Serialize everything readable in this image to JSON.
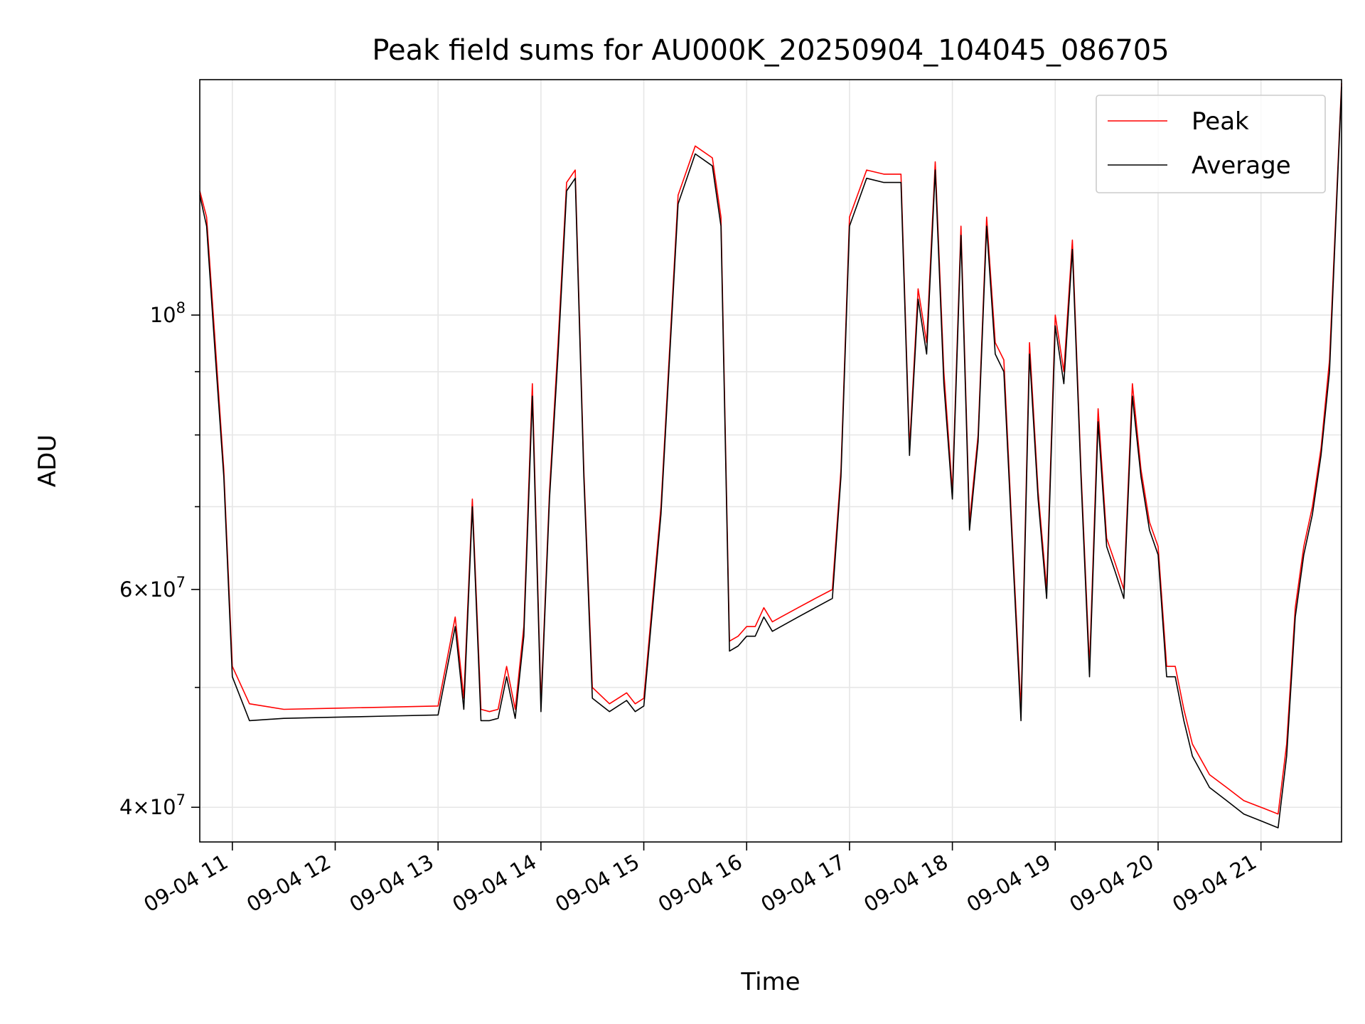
{
  "chart_data": {
    "type": "line",
    "title": "Peak field sums for AU000K_20250904_104045_086705",
    "xlabel": "Time",
    "ylabel": "ADU",
    "yscale": "log",
    "grid": true,
    "legend_position": "top-right",
    "x_range": [
      "2025-09-04 10:41",
      "2025-09-04 21:47"
    ],
    "y_range": [
      37500000,
      155000000
    ],
    "x_ticks": [
      {
        "value": "2025-09-04 11:00",
        "label": "09-04 11"
      },
      {
        "value": "2025-09-04 12:00",
        "label": "09-04 12"
      },
      {
        "value": "2025-09-04 13:00",
        "label": "09-04 13"
      },
      {
        "value": "2025-09-04 14:00",
        "label": "09-04 14"
      },
      {
        "value": "2025-09-04 15:00",
        "label": "09-04 15"
      },
      {
        "value": "2025-09-04 16:00",
        "label": "09-04 16"
      },
      {
        "value": "2025-09-04 17:00",
        "label": "09-04 17"
      },
      {
        "value": "2025-09-04 18:00",
        "label": "09-04 18"
      },
      {
        "value": "2025-09-04 19:00",
        "label": "09-04 19"
      },
      {
        "value": "2025-09-04 20:00",
        "label": "09-04 20"
      },
      {
        "value": "2025-09-04 21:00",
        "label": "09-04 21"
      }
    ],
    "y_ticks_major": [
      {
        "value": 40000000,
        "mantissa": "4",
        "base": "10",
        "exp": "7"
      },
      {
        "value": 60000000,
        "mantissa": "6",
        "base": "10",
        "exp": "7"
      },
      {
        "value": 100000000,
        "mantissa": "",
        "base": "10",
        "exp": "8"
      }
    ],
    "y_ticks_minor": [
      50000000,
      70000000,
      80000000,
      90000000
    ],
    "series": [
      {
        "name": "Peak",
        "color": "#ff0000",
        "x": [
          "2025-09-04 10:41",
          "2025-09-04 10:45",
          "2025-09-04 10:50",
          "2025-09-04 10:55",
          "2025-09-04 11:00",
          "2025-09-04 11:10",
          "2025-09-04 11:30",
          "2025-09-04 12:00",
          "2025-09-04 12:30",
          "2025-09-04 13:00",
          "2025-09-04 13:10",
          "2025-09-04 13:15",
          "2025-09-04 13:20",
          "2025-09-04 13:25",
          "2025-09-04 13:30",
          "2025-09-04 13:35",
          "2025-09-04 13:40",
          "2025-09-04 13:45",
          "2025-09-04 13:50",
          "2025-09-04 13:55",
          "2025-09-04 14:00",
          "2025-09-04 14:05",
          "2025-09-04 14:10",
          "2025-09-04 14:15",
          "2025-09-04 14:20",
          "2025-09-04 14:25",
          "2025-09-04 14:30",
          "2025-09-04 14:40",
          "2025-09-04 14:50",
          "2025-09-04 14:55",
          "2025-09-04 15:00",
          "2025-09-04 15:10",
          "2025-09-04 15:20",
          "2025-09-04 15:30",
          "2025-09-04 15:40",
          "2025-09-04 15:45",
          "2025-09-04 15:50",
          "2025-09-04 15:55",
          "2025-09-04 16:00",
          "2025-09-04 16:05",
          "2025-09-04 16:10",
          "2025-09-04 16:15",
          "2025-09-04 16:20",
          "2025-09-04 16:30",
          "2025-09-04 16:40",
          "2025-09-04 16:50",
          "2025-09-04 16:55",
          "2025-09-04 17:00",
          "2025-09-04 17:10",
          "2025-09-04 17:20",
          "2025-09-04 17:30",
          "2025-09-04 17:35",
          "2025-09-04 17:40",
          "2025-09-04 17:45",
          "2025-09-04 17:50",
          "2025-09-04 17:55",
          "2025-09-04 18:00",
          "2025-09-04 18:05",
          "2025-09-04 18:10",
          "2025-09-04 18:15",
          "2025-09-04 18:20",
          "2025-09-04 18:25",
          "2025-09-04 18:30",
          "2025-09-04 18:35",
          "2025-09-04 18:40",
          "2025-09-04 18:45",
          "2025-09-04 18:50",
          "2025-09-04 18:55",
          "2025-09-04 19:00",
          "2025-09-04 19:05",
          "2025-09-04 19:10",
          "2025-09-04 19:15",
          "2025-09-04 19:20",
          "2025-09-04 19:25",
          "2025-09-04 19:30",
          "2025-09-04 19:35",
          "2025-09-04 19:40",
          "2025-09-04 19:45",
          "2025-09-04 19:50",
          "2025-09-04 19:55",
          "2025-09-04 20:00",
          "2025-09-04 20:05",
          "2025-09-04 20:10",
          "2025-09-04 20:15",
          "2025-09-04 20:20",
          "2025-09-04 20:30",
          "2025-09-04 20:40",
          "2025-09-04 20:50",
          "2025-09-04 21:00",
          "2025-09-04 21:10",
          "2025-09-04 21:15",
          "2025-09-04 21:20",
          "2025-09-04 21:25",
          "2025-09-04 21:30",
          "2025-09-04 21:35",
          "2025-09-04 21:40",
          "2025-09-04 21:47"
        ],
        "values": [
          126000000,
          120000000,
          95000000,
          75000000,
          52000000,
          48500000,
          48000000,
          48100000,
          48200000,
          48300000,
          57000000,
          49000000,
          71000000,
          48000000,
          47800000,
          48000000,
          52000000,
          48000000,
          56000000,
          88000000,
          48500000,
          72000000,
          95000000,
          128000000,
          131000000,
          75000000,
          50000000,
          48500000,
          49500000,
          48500000,
          49000000,
          70000000,
          125000000,
          137000000,
          134000000,
          120000000,
          54500000,
          55000000,
          56000000,
          56000000,
          58000000,
          56500000,
          57000000,
          58000000,
          59000000,
          60000000,
          75000000,
          120000000,
          131000000,
          130000000,
          130000000,
          78000000,
          105000000,
          95000000,
          133000000,
          90000000,
          72000000,
          118000000,
          68000000,
          80000000,
          120000000,
          95000000,
          92000000,
          66000000,
          48000000,
          95000000,
          72000000,
          60000000,
          100000000,
          90000000,
          115000000,
          75000000,
          52000000,
          84000000,
          66000000,
          63000000,
          60000000,
          88000000,
          75000000,
          68000000,
          65000000,
          52000000,
          52000000,
          48000000,
          45000000,
          42500000,
          41500000,
          40500000,
          40000000,
          39500000,
          45000000,
          58000000,
          65000000,
          70000000,
          78000000,
          92000000,
          154000000
        ]
      },
      {
        "name": "Average",
        "color": "#000000",
        "x": [
          "2025-09-04 10:41",
          "2025-09-04 10:45",
          "2025-09-04 10:50",
          "2025-09-04 10:55",
          "2025-09-04 11:00",
          "2025-09-04 11:10",
          "2025-09-04 11:30",
          "2025-09-04 12:00",
          "2025-09-04 12:30",
          "2025-09-04 13:00",
          "2025-09-04 13:10",
          "2025-09-04 13:15",
          "2025-09-04 13:20",
          "2025-09-04 13:25",
          "2025-09-04 13:30",
          "2025-09-04 13:35",
          "2025-09-04 13:40",
          "2025-09-04 13:45",
          "2025-09-04 13:50",
          "2025-09-04 13:55",
          "2025-09-04 14:00",
          "2025-09-04 14:05",
          "2025-09-04 14:10",
          "2025-09-04 14:15",
          "2025-09-04 14:20",
          "2025-09-04 14:25",
          "2025-09-04 14:30",
          "2025-09-04 14:40",
          "2025-09-04 14:50",
          "2025-09-04 14:55",
          "2025-09-04 15:00",
          "2025-09-04 15:10",
          "2025-09-04 15:20",
          "2025-09-04 15:30",
          "2025-09-04 15:40",
          "2025-09-04 15:45",
          "2025-09-04 15:50",
          "2025-09-04 15:55",
          "2025-09-04 16:00",
          "2025-09-04 16:05",
          "2025-09-04 16:10",
          "2025-09-04 16:15",
          "2025-09-04 16:20",
          "2025-09-04 16:30",
          "2025-09-04 16:40",
          "2025-09-04 16:50",
          "2025-09-04 16:55",
          "2025-09-04 17:00",
          "2025-09-04 17:10",
          "2025-09-04 17:20",
          "2025-09-04 17:30",
          "2025-09-04 17:35",
          "2025-09-04 17:40",
          "2025-09-04 17:45",
          "2025-09-04 17:50",
          "2025-09-04 17:55",
          "2025-09-04 18:00",
          "2025-09-04 18:05",
          "2025-09-04 18:10",
          "2025-09-04 18:15",
          "2025-09-04 18:20",
          "2025-09-04 18:25",
          "2025-09-04 18:30",
          "2025-09-04 18:35",
          "2025-09-04 18:40",
          "2025-09-04 18:45",
          "2025-09-04 18:50",
          "2025-09-04 18:55",
          "2025-09-04 19:00",
          "2025-09-04 19:05",
          "2025-09-04 19:10",
          "2025-09-04 19:15",
          "2025-09-04 19:20",
          "2025-09-04 19:25",
          "2025-09-04 19:30",
          "2025-09-04 19:35",
          "2025-09-04 19:40",
          "2025-09-04 19:45",
          "2025-09-04 19:50",
          "2025-09-04 19:55",
          "2025-09-04 20:00",
          "2025-09-04 20:05",
          "2025-09-04 20:10",
          "2025-09-04 20:15",
          "2025-09-04 20:20",
          "2025-09-04 20:30",
          "2025-09-04 20:40",
          "2025-09-04 20:50",
          "2025-09-04 21:00",
          "2025-09-04 21:10",
          "2025-09-04 21:15",
          "2025-09-04 21:20",
          "2025-09-04 21:25",
          "2025-09-04 21:30",
          "2025-09-04 21:35",
          "2025-09-04 21:40",
          "2025-09-04 21:47"
        ],
        "values": [
          125000000,
          118000000,
          93000000,
          74000000,
          51000000,
          47000000,
          47200000,
          47300000,
          47400000,
          47500000,
          56000000,
          48000000,
          70000000,
          47000000,
          47000000,
          47200000,
          51000000,
          47200000,
          55000000,
          86000000,
          47800000,
          71000000,
          93000000,
          126000000,
          129000000,
          74000000,
          49000000,
          47800000,
          48800000,
          47800000,
          48300000,
          69000000,
          123000000,
          135000000,
          132000000,
          118000000,
          53500000,
          54000000,
          55000000,
          55000000,
          57000000,
          55500000,
          56000000,
          57000000,
          58000000,
          59000000,
          74000000,
          118000000,
          129000000,
          128000000,
          128000000,
          77000000,
          103000000,
          93000000,
          131000000,
          88000000,
          71000000,
          116000000,
          67000000,
          79000000,
          118000000,
          93000000,
          90000000,
          65000000,
          47000000,
          93000000,
          71000000,
          59000000,
          98000000,
          88000000,
          113000000,
          74000000,
          51000000,
          82000000,
          65000000,
          62000000,
          59000000,
          86000000,
          74000000,
          67000000,
          64000000,
          51000000,
          51000000,
          47000000,
          44000000,
          41500000,
          40500000,
          39500000,
          39000000,
          38500000,
          44000000,
          57000000,
          64000000,
          69000000,
          77000000,
          90000000,
          153000000
        ]
      }
    ]
  }
}
